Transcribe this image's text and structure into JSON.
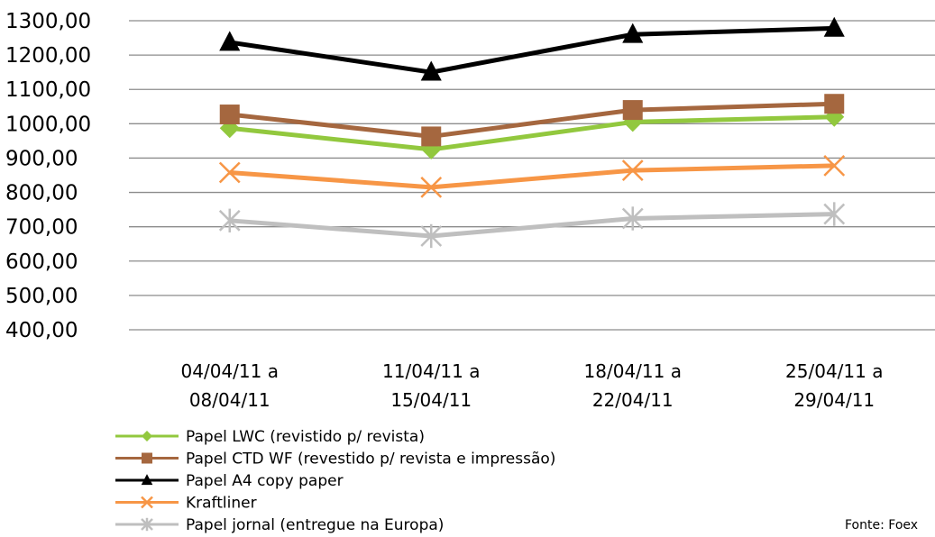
{
  "chart_data": {
    "type": "line",
    "title": "",
    "xlabel": "",
    "ylabel": "",
    "ylim": [
      400,
      1300
    ],
    "y_ticks": [
      "400,00",
      "500,00",
      "600,00",
      "700,00",
      "800,00",
      "900,00",
      "1000,00",
      "1100,00",
      "1200,00",
      "1300,00"
    ],
    "categories": [
      [
        "04/04/11 a",
        "08/04/11"
      ],
      [
        "11/04/11 a",
        "15/04/11"
      ],
      [
        "18/04/11 a",
        "22/04/11"
      ],
      [
        "25/04/11 a",
        "29/04/11"
      ]
    ],
    "grid": true,
    "legend_position": "bottom-left",
    "series": [
      {
        "name": "Papel LWC (revistido p/ revista)",
        "color": "#92c83e",
        "marker": "diamond",
        "values": [
          987,
          925,
          1005,
          1020
        ]
      },
      {
        "name": "Papel CTD WF (revestido p/ revista e impressão)",
        "color": "#a5673f",
        "marker": "square",
        "values": [
          1027,
          963,
          1040,
          1058
        ]
      },
      {
        "name": "Papel A4 copy paper",
        "color": "#000000",
        "marker": "triangle",
        "values": [
          1237,
          1150,
          1260,
          1278
        ]
      },
      {
        "name": "Kraftliner",
        "color": "#f79646",
        "marker": "x",
        "values": [
          858,
          815,
          864,
          878
        ]
      },
      {
        "name": "Papel jornal  (entregue  na Europa)",
        "color": "#bfbfbf",
        "marker": "star",
        "values": [
          718,
          673,
          724,
          737
        ]
      }
    ],
    "source_note": "Fonte: Foex"
  }
}
